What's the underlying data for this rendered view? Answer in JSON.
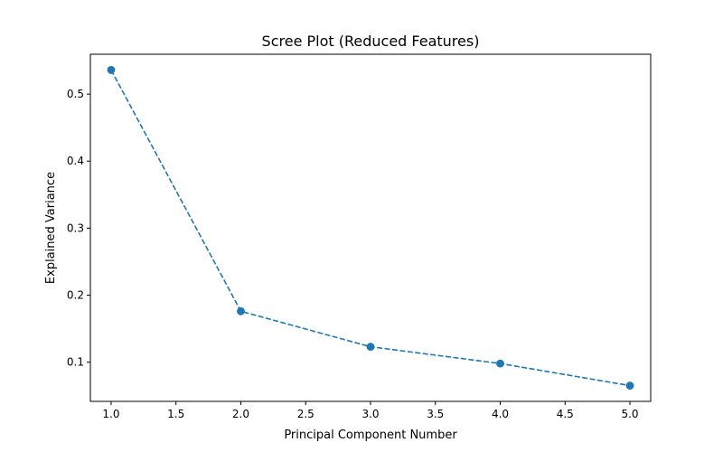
{
  "chart_data": {
    "type": "line",
    "title": "Scree Plot (Reduced Features)",
    "xlabel": "Principal Component Number",
    "ylabel": "Explained Variance",
    "x": [
      1,
      2,
      3,
      4,
      5
    ],
    "series": [
      {
        "values": [
          0.536,
          0.176,
          0.123,
          0.098,
          0.065
        ],
        "color": "#1f77b4",
        "line_style": "dashed",
        "marker": "circle"
      }
    ],
    "xlim": [
      0.84,
      5.16
    ],
    "ylim": [
      0.0415,
      0.5595
    ],
    "x_ticks": [
      1.0,
      1.5,
      2.0,
      2.5,
      3.0,
      3.5,
      4.0,
      4.5,
      5.0
    ],
    "x_tick_labels": [
      "1.0",
      "1.5",
      "2.0",
      "2.5",
      "3.0",
      "3.5",
      "4.0",
      "4.5",
      "5.0"
    ],
    "y_ticks": [
      0.1,
      0.2,
      0.3,
      0.4,
      0.5
    ],
    "y_tick_labels": [
      "0.1",
      "0.2",
      "0.3",
      "0.4",
      "0.5"
    ],
    "grid": false,
    "legend": "none"
  }
}
